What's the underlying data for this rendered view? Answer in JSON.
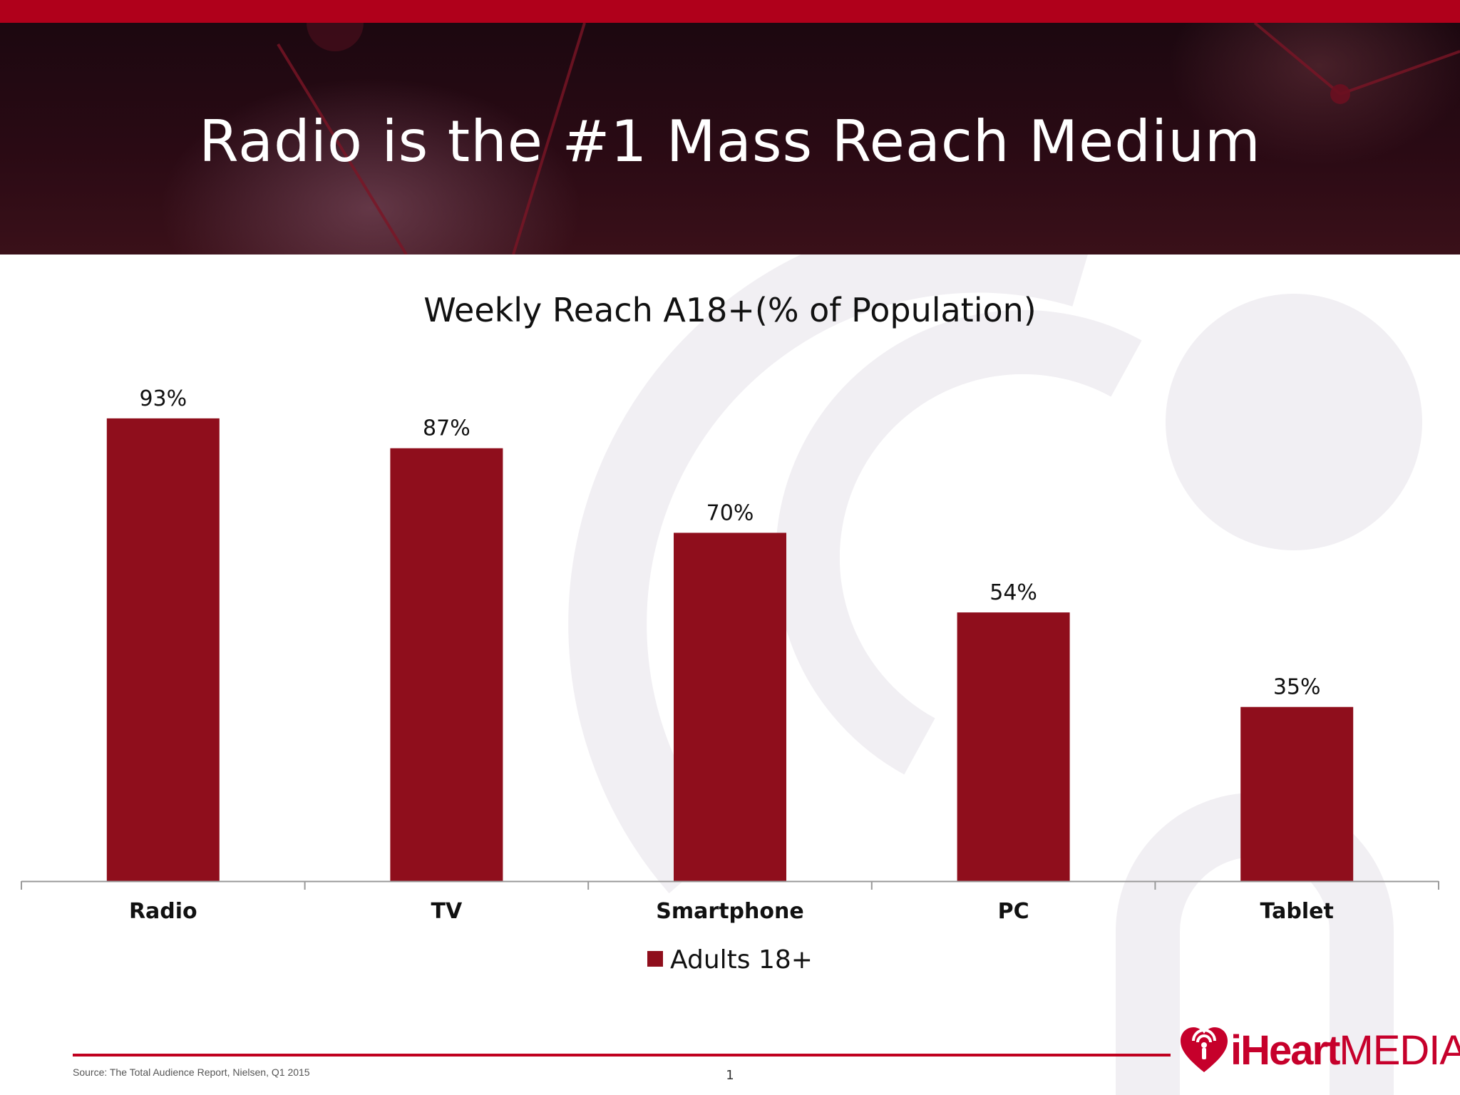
{
  "header": {
    "title": "Radio is the #1 Mass Reach Medium"
  },
  "colors": {
    "brand_red": "#b0001b",
    "bar": "#8f0e1c",
    "logo_red": "#c6002b"
  },
  "chart_data": {
    "type": "bar",
    "title": "Weekly Reach A18+(% of Population)",
    "categories": [
      "Radio",
      "TV",
      "Smartphone",
      "PC",
      "Tablet"
    ],
    "series": [
      {
        "name": "Adults 18+",
        "values": [
          93,
          87,
          70,
          54,
          35
        ]
      }
    ],
    "data_labels": [
      "93%",
      "87%",
      "70%",
      "54%",
      "35%"
    ],
    "ylim": [
      0,
      100
    ],
    "xlabel": "",
    "ylabel": "",
    "grid": false,
    "legend": "bottom"
  },
  "legend": {
    "label": "Adults 18+"
  },
  "footer": {
    "source": "Source: The Total Audience Report, Nielsen, Q1 2015",
    "page_number": "1"
  },
  "logo": {
    "part1": "iHeart",
    "part2": "MEDIA",
    "icon": "iheart-logo-icon"
  }
}
